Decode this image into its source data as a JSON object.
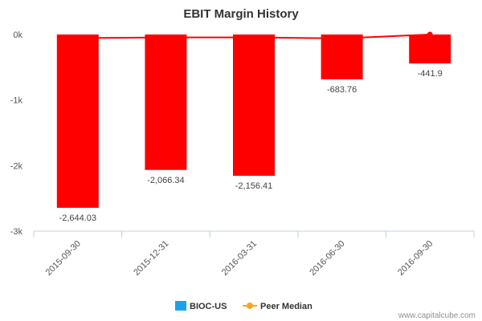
{
  "chart_data": {
    "type": "bar",
    "title": "EBIT Margin History",
    "xlabel": "",
    "ylabel": "",
    "categories": [
      "2015-09-30",
      "2015-12-31",
      "2016-03-31",
      "2016-06-30",
      "2016-09-30"
    ],
    "series": [
      {
        "name": "BIOC-US",
        "type": "bar",
        "values": [
          -2644.03,
          -2066.34,
          -2156.41,
          -683.76,
          -441.9
        ],
        "labels": [
          "-2,644.03",
          "-2,066.34",
          "-2,156.41",
          "-683.76",
          "-441.9"
        ],
        "color": "#ff0000"
      },
      {
        "name": "Peer Median",
        "type": "line",
        "values": [
          -55,
          -45,
          -45,
          -60,
          0
        ],
        "color": "#ff0000"
      }
    ],
    "legend": [
      {
        "name": "BIOC-US",
        "color": "#1aa3e8",
        "marker": "square"
      },
      {
        "name": "Peer Median",
        "color": "#f5a623",
        "marker": "line-dot"
      }
    ],
    "yticks": [
      {
        "value": 0,
        "label": "0k"
      },
      {
        "value": -1000,
        "label": "-1k"
      },
      {
        "value": -2000,
        "label": "-2k"
      },
      {
        "value": -3000,
        "label": "-3k"
      }
    ],
    "ylim": [
      -3000,
      0
    ],
    "grid": false,
    "legend_position": "bottom-center"
  },
  "credit": "www.capitalcube.com"
}
